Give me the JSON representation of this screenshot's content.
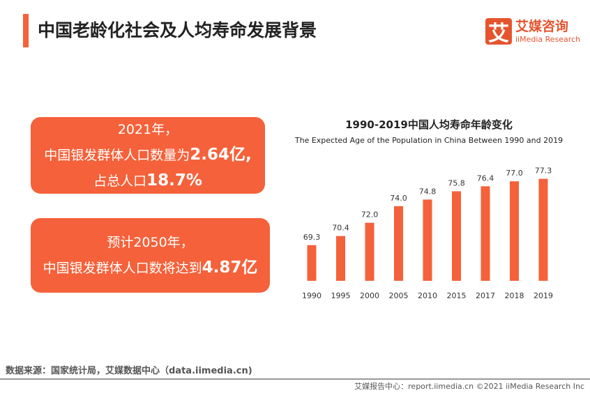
{
  "header": {
    "title": "中国老龄化社会及人均寿命发展背景"
  },
  "logo": {
    "mark": "艾",
    "cn": "艾媒咨询",
    "en": "iiMedia Research"
  },
  "box1": {
    "line1": "2021年，",
    "line2_pre": "中国银发群体人口数量为",
    "line2_num": "2.64亿,",
    "line3_pre": "占总人口",
    "line3_num": "18.7%"
  },
  "box2": {
    "line1": "预计2050年，",
    "line2_pre": "中国银发群体人口数将达到",
    "line2_num": "4.87亿"
  },
  "chart_data": {
    "type": "bar",
    "title": "1990-2019中国人均寿命年龄变化",
    "subtitle": "The Expected Age of the Population in China Between 1990 and 2019",
    "categories": [
      "1990",
      "1995",
      "2000",
      "2005",
      "2010",
      "2015",
      "2017",
      "2018",
      "2019"
    ],
    "values": [
      69.3,
      70.4,
      72.0,
      74.0,
      74.8,
      75.8,
      76.4,
      77.0,
      77.3
    ],
    "ylim": [
      65,
      78
    ],
    "grid": false,
    "color": "#f5613a"
  },
  "footer": {
    "source": "数据来源：国家统计局，艾媒数据中心（data.iimedia.cn)",
    "report": "艾媒报告中心：report.iimedia.cn  ©2021  iiMedia Research  Inc"
  }
}
